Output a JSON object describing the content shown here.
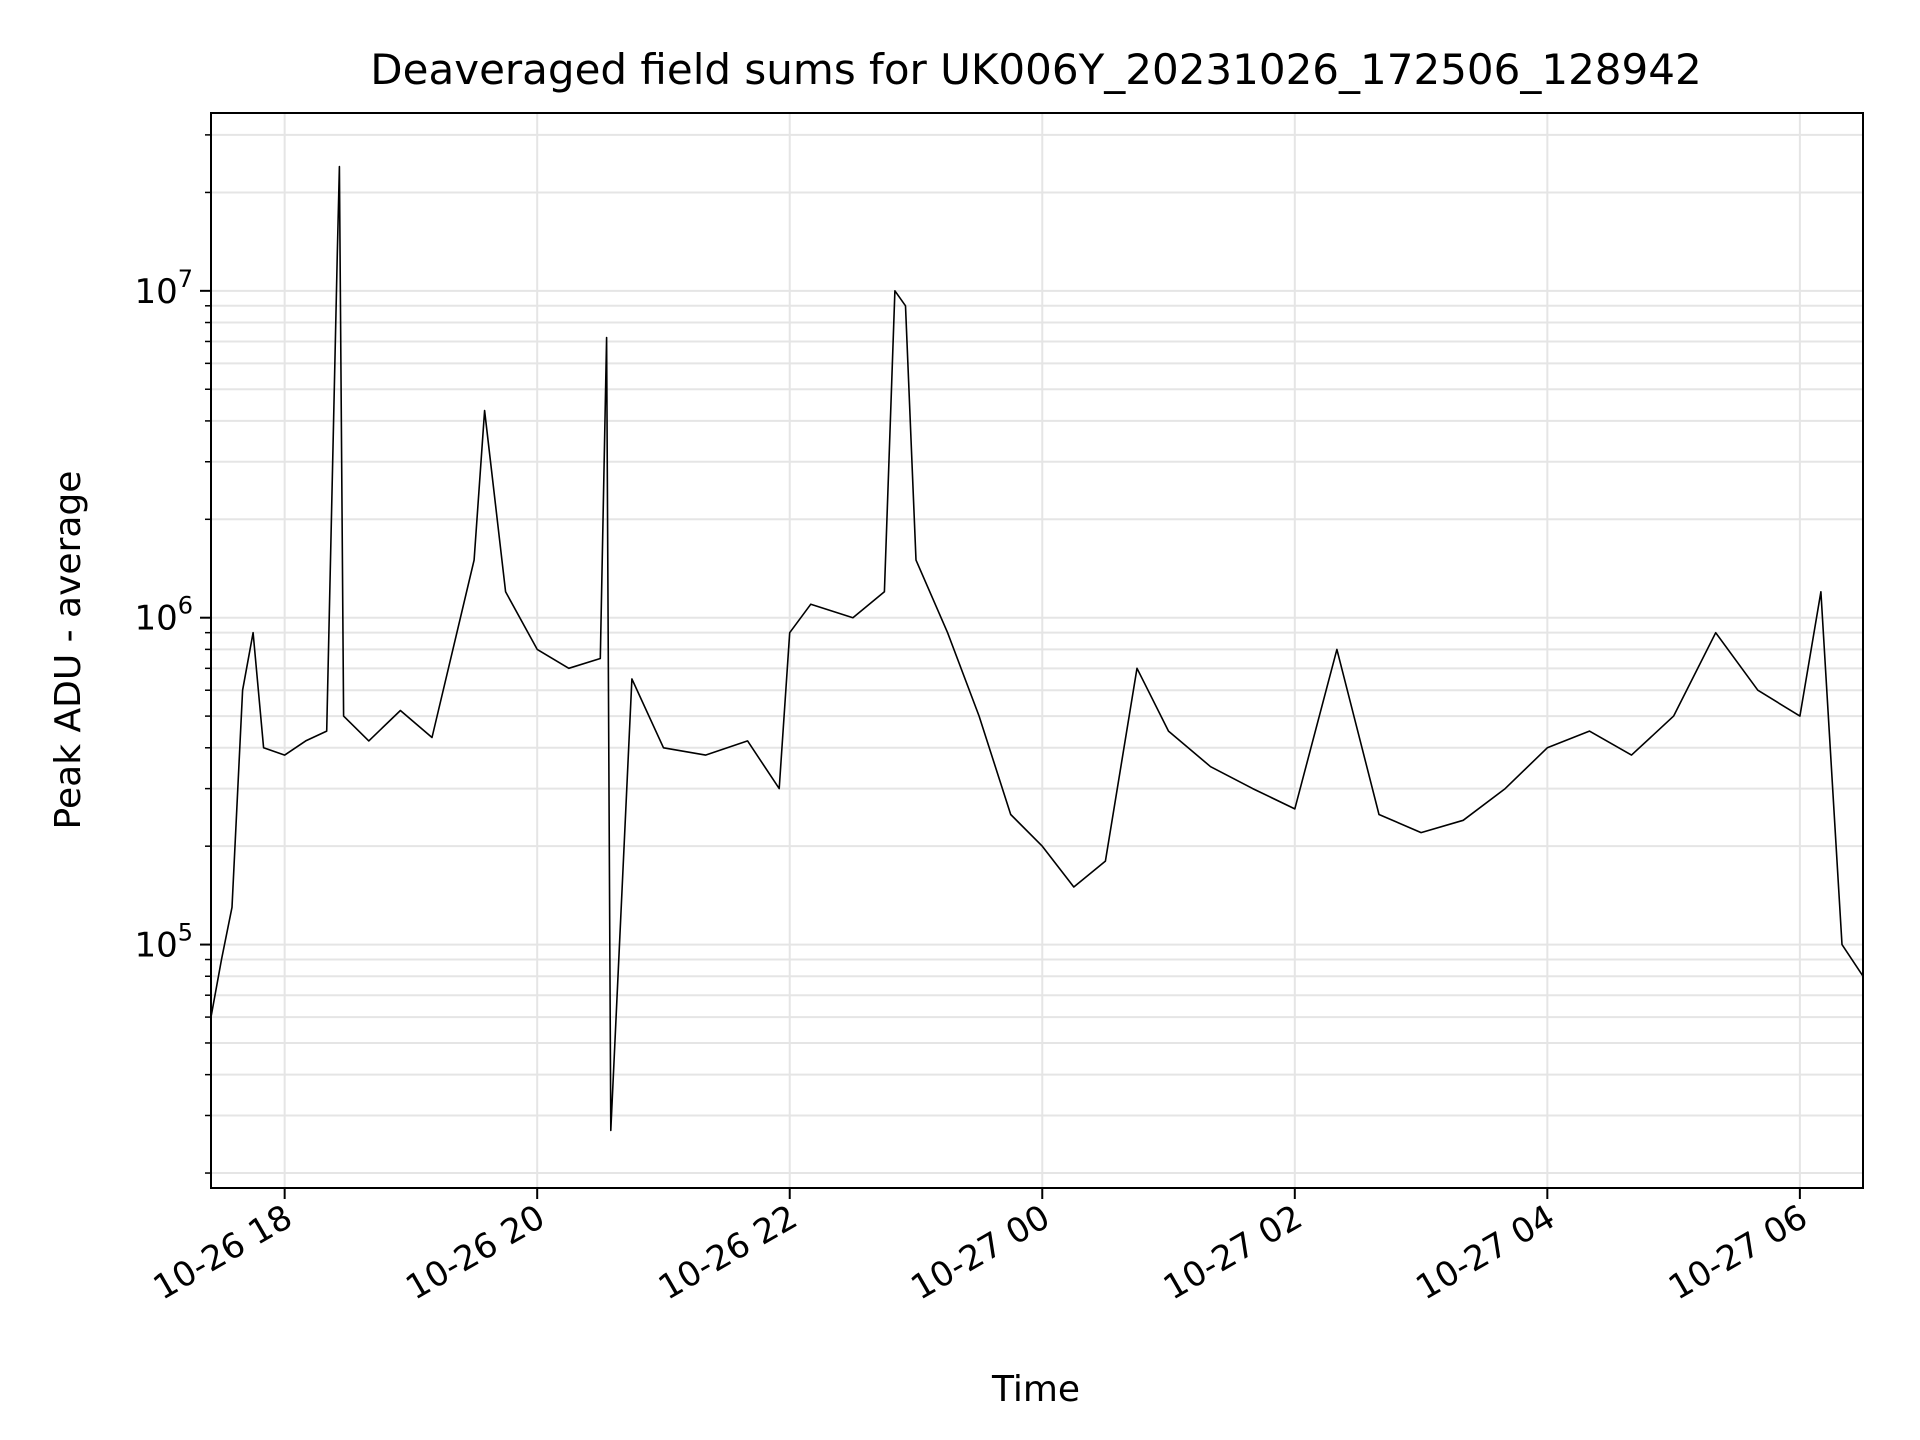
{
  "chart_data": {
    "type": "line",
    "title": "Deaveraged field sums for UK006Y_20231026_172506_128942",
    "xlabel": "Time",
    "ylabel": "Peak ADU - average",
    "yscale": "log",
    "ylim": [
      18000,
      35000000
    ],
    "xlim": [
      "2023-10-26 17:25",
      "2023-10-27 06:30"
    ],
    "grid": true,
    "line_color": "#000000",
    "grid_color": "#e5e5e5",
    "x_ticks": [
      {
        "t": "2023-10-26 18:00",
        "label": "10-26 18"
      },
      {
        "t": "2023-10-26 20:00",
        "label": "10-26 20"
      },
      {
        "t": "2023-10-26 22:00",
        "label": "10-26 22"
      },
      {
        "t": "2023-10-27 00:00",
        "label": "10-27 00"
      },
      {
        "t": "2023-10-27 02:00",
        "label": "10-27 02"
      },
      {
        "t": "2023-10-27 04:00",
        "label": "10-27 04"
      },
      {
        "t": "2023-10-27 06:00",
        "label": "10-27 06"
      }
    ],
    "y_ticks": [
      {
        "value": 100000,
        "base": "10",
        "exp": "5"
      },
      {
        "value": 1000000,
        "base": "10",
        "exp": "6"
      },
      {
        "value": 10000000,
        "base": "10",
        "exp": "7"
      }
    ],
    "series": [
      {
        "points": [
          [
            "2023-10-26 17:25",
            60000
          ],
          [
            "2023-10-26 17:30",
            90000
          ],
          [
            "2023-10-26 17:35",
            130000
          ],
          [
            "2023-10-26 17:40",
            600000
          ],
          [
            "2023-10-26 17:45",
            900000
          ],
          [
            "2023-10-26 17:50",
            400000
          ],
          [
            "2023-10-26 18:00",
            380000
          ],
          [
            "2023-10-26 18:10",
            420000
          ],
          [
            "2023-10-26 18:20",
            450000
          ],
          [
            "2023-10-26 18:25",
            13000000
          ],
          [
            "2023-10-26 18:26",
            24000000
          ],
          [
            "2023-10-26 18:28",
            500000
          ],
          [
            "2023-10-26 18:40",
            420000
          ],
          [
            "2023-10-26 18:55",
            520000
          ],
          [
            "2023-10-26 19:10",
            430000
          ],
          [
            "2023-10-26 19:30",
            1500000
          ],
          [
            "2023-10-26 19:35",
            4300000
          ],
          [
            "2023-10-26 19:45",
            1200000
          ],
          [
            "2023-10-26 20:00",
            800000
          ],
          [
            "2023-10-26 20:15",
            700000
          ],
          [
            "2023-10-26 20:30",
            750000
          ],
          [
            "2023-10-26 20:33",
            7200000
          ],
          [
            "2023-10-26 20:35",
            27000
          ],
          [
            "2023-10-26 20:45",
            650000
          ],
          [
            "2023-10-26 21:00",
            400000
          ],
          [
            "2023-10-26 21:20",
            380000
          ],
          [
            "2023-10-26 21:40",
            420000
          ],
          [
            "2023-10-26 21:55",
            300000
          ],
          [
            "2023-10-26 22:00",
            900000
          ],
          [
            "2023-10-26 22:10",
            1100000
          ],
          [
            "2023-10-26 22:30",
            1000000
          ],
          [
            "2023-10-26 22:45",
            1200000
          ],
          [
            "2023-10-26 22:50",
            10000000
          ],
          [
            "2023-10-26 22:55",
            9000000
          ],
          [
            "2023-10-26 23:00",
            1500000
          ],
          [
            "2023-10-26 23:15",
            900000
          ],
          [
            "2023-10-26 23:30",
            500000
          ],
          [
            "2023-10-26 23:45",
            250000
          ],
          [
            "2023-10-27 00:00",
            200000
          ],
          [
            "2023-10-27 00:15",
            150000
          ],
          [
            "2023-10-27 00:30",
            180000
          ],
          [
            "2023-10-27 00:45",
            700000
          ],
          [
            "2023-10-27 01:00",
            450000
          ],
          [
            "2023-10-27 01:20",
            350000
          ],
          [
            "2023-10-27 01:40",
            300000
          ],
          [
            "2023-10-27 02:00",
            260000
          ],
          [
            "2023-10-27 02:20",
            800000
          ],
          [
            "2023-10-27 02:40",
            250000
          ],
          [
            "2023-10-27 03:00",
            220000
          ],
          [
            "2023-10-27 03:20",
            240000
          ],
          [
            "2023-10-27 03:40",
            300000
          ],
          [
            "2023-10-27 04:00",
            400000
          ],
          [
            "2023-10-27 04:20",
            450000
          ],
          [
            "2023-10-27 04:40",
            380000
          ],
          [
            "2023-10-27 05:00",
            500000
          ],
          [
            "2023-10-27 05:20",
            900000
          ],
          [
            "2023-10-27 05:40",
            600000
          ],
          [
            "2023-10-27 06:00",
            500000
          ],
          [
            "2023-10-27 06:10",
            1200000
          ],
          [
            "2023-10-27 06:20",
            100000
          ],
          [
            "2023-10-27 06:30",
            80000
          ]
        ]
      }
    ]
  }
}
